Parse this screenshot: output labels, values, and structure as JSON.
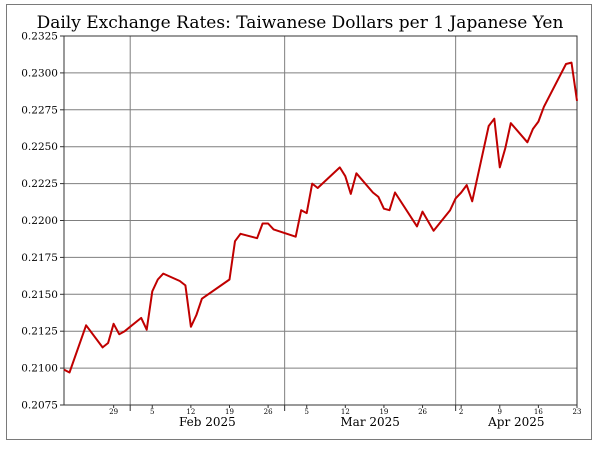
{
  "chart_data": {
    "type": "line",
    "title": "Daily Exchange Rates: Taiwanese Dollars per 1 Japanese Yen",
    "xlabel": "",
    "ylabel": "",
    "ylim": [
      0.2075,
      0.2325
    ],
    "yticks": [
      "0.2075",
      "0.2100",
      "0.2125",
      "0.2150",
      "0.2175",
      "0.2200",
      "0.2225",
      "0.2250",
      "0.2275",
      "0.2300",
      "0.2325"
    ],
    "xlim": [
      "2025-01-20",
      "2025-04-23"
    ],
    "day_ticks": [
      {
        "date": "2025-01-29",
        "label": "29"
      },
      {
        "date": "2025-02-05",
        "label": "5"
      },
      {
        "date": "2025-02-12",
        "label": "12"
      },
      {
        "date": "2025-02-19",
        "label": "19"
      },
      {
        "date": "2025-02-26",
        "label": "26"
      },
      {
        "date": "2025-03-05",
        "label": "5"
      },
      {
        "date": "2025-03-12",
        "label": "12"
      },
      {
        "date": "2025-03-19",
        "label": "19"
      },
      {
        "date": "2025-03-26",
        "label": "26"
      },
      {
        "date": "2025-04-02",
        "label": "2"
      },
      {
        "date": "2025-04-09",
        "label": "9"
      },
      {
        "date": "2025-04-16",
        "label": "16"
      },
      {
        "date": "2025-04-23",
        "label": "23"
      }
    ],
    "month_ticks": [
      {
        "date": "2025-02-01",
        "label": "Feb 2025"
      },
      {
        "date": "2025-03-01",
        "label": "Mar 2025"
      },
      {
        "date": "2025-04-01",
        "label": "Apr 2025"
      }
    ],
    "grid": true,
    "colors": {
      "line": "#c00000",
      "grid": "#7f7f7f"
    },
    "series": [
      {
        "name": "",
        "x": [
          "2025-01-20",
          "2025-01-21",
          "2025-01-24",
          "2025-01-27",
          "2025-01-28",
          "2025-01-29",
          "2025-01-30",
          "2025-01-31",
          "2025-02-03",
          "2025-02-04",
          "2025-02-05",
          "2025-02-06",
          "2025-02-07",
          "2025-02-10",
          "2025-02-11",
          "2025-02-12",
          "2025-02-13",
          "2025-02-14",
          "2025-02-19",
          "2025-02-20",
          "2025-02-21",
          "2025-02-24",
          "2025-02-25",
          "2025-02-26",
          "2025-02-27",
          "2025-03-03",
          "2025-03-04",
          "2025-03-05",
          "2025-03-06",
          "2025-03-07",
          "2025-03-11",
          "2025-03-12",
          "2025-03-13",
          "2025-03-14",
          "2025-03-17",
          "2025-03-18",
          "2025-03-19",
          "2025-03-20",
          "2025-03-21",
          "2025-03-25",
          "2025-03-26",
          "2025-03-28",
          "2025-03-31",
          "2025-04-01",
          "2025-04-02",
          "2025-04-03",
          "2025-04-04",
          "2025-04-07",
          "2025-04-08",
          "2025-04-09",
          "2025-04-10",
          "2025-04-11",
          "2025-04-14",
          "2025-04-15",
          "2025-04-16",
          "2025-04-17",
          "2025-04-21",
          "2025-04-22",
          "2025-04-23"
        ],
        "values": [
          0.2099,
          0.2097,
          0.2129,
          0.2114,
          0.2117,
          0.213,
          0.2123,
          0.2125,
          0.2134,
          0.2126,
          0.2152,
          0.216,
          0.2164,
          0.2159,
          0.2156,
          0.2128,
          0.2136,
          0.2147,
          0.216,
          0.2186,
          0.2191,
          0.2188,
          0.2198,
          0.2198,
          0.2194,
          0.2189,
          0.2207,
          0.2205,
          0.2225,
          0.2222,
          0.2236,
          0.223,
          0.2218,
          0.2232,
          0.2219,
          0.2216,
          0.2208,
          0.2207,
          0.2219,
          0.2196,
          0.2206,
          0.2193,
          0.2207,
          0.2215,
          0.2219,
          0.2224,
          0.2213,
          0.2264,
          0.2269,
          0.2236,
          0.2249,
          0.2266,
          0.2253,
          0.2262,
          0.2267,
          0.2277,
          0.2306,
          0.2307,
          0.2281
        ]
      }
    ]
  }
}
